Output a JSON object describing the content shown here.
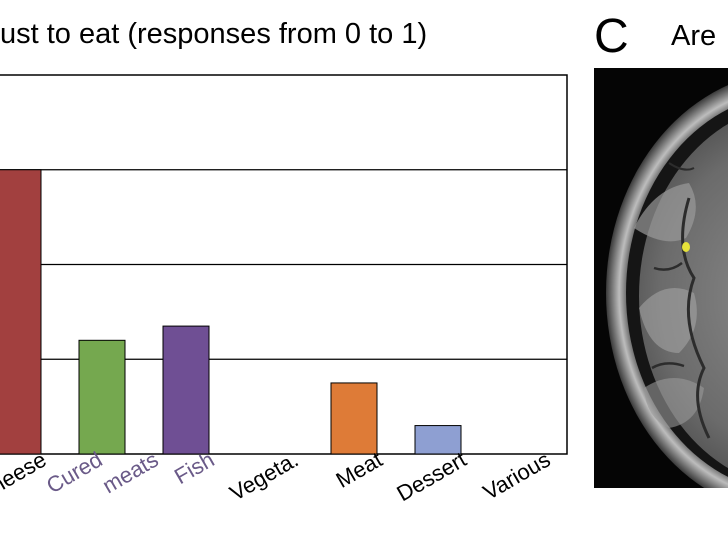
{
  "panel_c": {
    "letter": "C",
    "title": "Are"
  },
  "chart_data": {
    "type": "bar",
    "title": "ust to eat (responses from 0 to 1)",
    "categories": [
      "heese",
      "Cured meats",
      "Fish",
      "Vegeta.",
      "Meat",
      "Dessert",
      "Various"
    ],
    "category_label_lines": [
      [
        "heese"
      ],
      [
        "Cured",
        "meats"
      ],
      [
        "Fish"
      ],
      [
        "Vegeta."
      ],
      [
        "Meat"
      ],
      [
        "Dessert"
      ],
      [
        "Various"
      ]
    ],
    "values": [
      0.6,
      0.24,
      0.27,
      0,
      0.15,
      0.06,
      0
    ],
    "colors": [
      "#a2403f",
      "#75a84f",
      "#6f4f94",
      "#ffffff",
      "#de7b37",
      "#8e9fd2",
      "#ffffff"
    ],
    "ylim": [
      0,
      0.8
    ],
    "gridlines": [
      0.2,
      0.4,
      0.6
    ],
    "grid": true,
    "legend": "none",
    "label_colors": [
      "#000000",
      "#6a5a88",
      "#6a5a88",
      "#000000",
      "#000000",
      "#000000",
      "#000000"
    ]
  }
}
